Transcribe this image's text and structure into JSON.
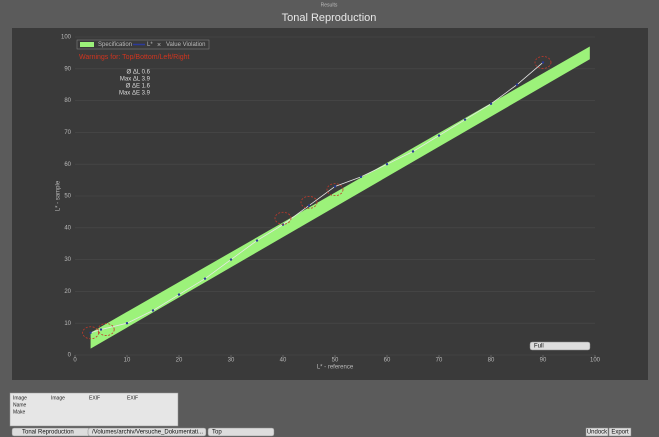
{
  "window": {
    "header": "Results",
    "title": "Tonal Reproduction"
  },
  "chart_data": {
    "type": "line",
    "warning": "Warnings for: Top/Bottom/Left/Right",
    "stats": [
      "Ø ΔL 0.6",
      "Max ΔL 3.9",
      "Ø ΔE 1.6",
      "Max ΔE 3.9"
    ],
    "xlabel": "L* - reference",
    "ylabel": "L* - sample",
    "xlim": [
      0,
      100
    ],
    "ylim": [
      0,
      100
    ],
    "xticks": [
      0,
      10,
      20,
      30,
      40,
      50,
      60,
      70,
      80,
      90,
      100
    ],
    "yticks": [
      0,
      10,
      20,
      30,
      40,
      50,
      60,
      70,
      80,
      90,
      100
    ],
    "grid": true,
    "band": {
      "name": "Specification",
      "color": "#9cf27a",
      "x": [
        3,
        99
      ],
      "lower": [
        2,
        93
      ],
      "upper": [
        7,
        97
      ]
    },
    "series": [
      {
        "name": "L*",
        "color": "#2b3a9a",
        "x": [
          3,
          5,
          10,
          15,
          20,
          25,
          30,
          35,
          40,
          45,
          50,
          55,
          60,
          65,
          70,
          75,
          80,
          85,
          90
        ],
        "values": [
          7,
          8,
          10,
          14,
          19,
          24,
          30,
          36,
          41,
          47,
          53,
          56,
          60,
          64,
          69,
          74,
          79,
          85,
          92
        ]
      },
      {
        "name": "Value Violation",
        "color": "#c0392b",
        "x": [
          3,
          6,
          40,
          45,
          50,
          90
        ],
        "values": [
          7,
          8,
          43,
          48,
          52,
          92
        ]
      }
    ],
    "range_select": "Full"
  },
  "table": {
    "headers": [
      "Image",
      "Image",
      "EXIF",
      "EXIF"
    ],
    "rows": [
      "Name",
      "Make"
    ]
  },
  "controls": {
    "view": "Tonal Reproduction",
    "path": "/Volumes/archiv/Versuche_Dokumentati...",
    "position": "Top",
    "undock": "Undock",
    "export": "Export"
  }
}
